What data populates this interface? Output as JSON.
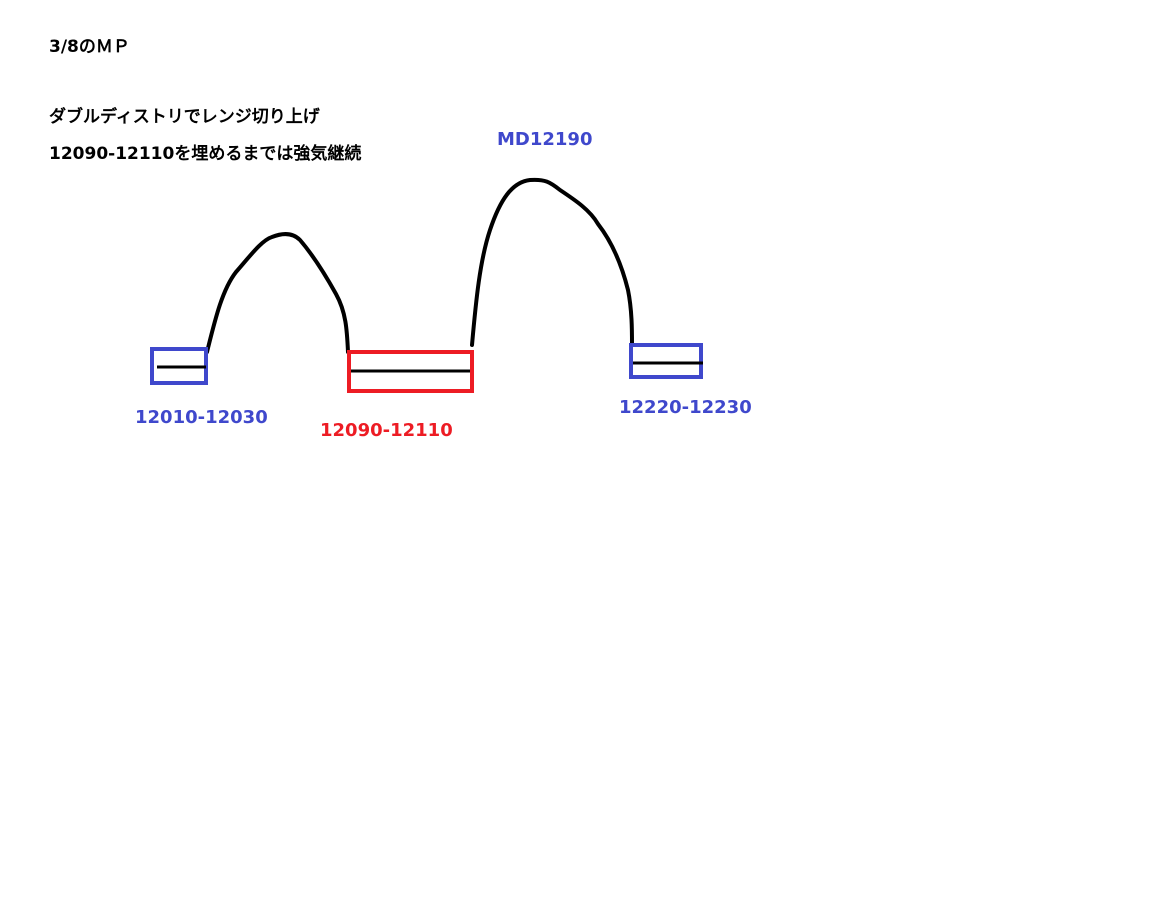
{
  "header": {
    "title": "3/8のＭＰ",
    "line1": "ダブルディストリでレンジ切り上げ",
    "line2": "12090-12110を埋めるまでは強気継続"
  },
  "labels": {
    "left_range": "12010-12030",
    "middle_range": "12090-12110",
    "peak": "MD12190",
    "right_range": "12220-12230"
  },
  "colors": {
    "blue": "#3f48cc",
    "red": "#ed1c24",
    "line": "#000000"
  }
}
